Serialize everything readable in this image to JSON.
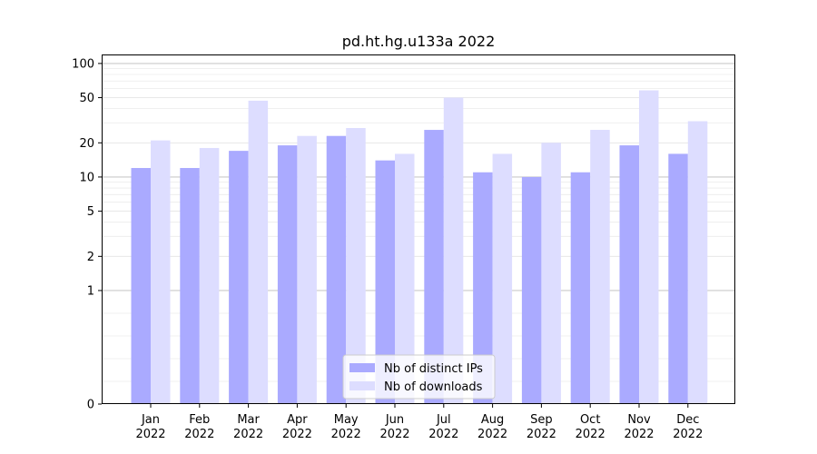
{
  "chart_data": {
    "type": "bar",
    "title": "pd.ht.hg.u133a 2022",
    "xlabel": "",
    "ylabel": "",
    "yscale": "symlog",
    "ylim": [
      0,
      120
    ],
    "yticks": [
      0,
      1,
      2,
      5,
      10,
      20,
      50,
      100
    ],
    "ytick_labels": [
      "0",
      "1",
      "2",
      "5",
      "10",
      "20",
      "50",
      "100"
    ],
    "major_gridlines": [
      1,
      10,
      100
    ],
    "grid": true,
    "legend_position": "bottom-center",
    "categories": [
      {
        "month": "Jan",
        "year": "2022"
      },
      {
        "month": "Feb",
        "year": "2022"
      },
      {
        "month": "Mar",
        "year": "2022"
      },
      {
        "month": "Apr",
        "year": "2022"
      },
      {
        "month": "May",
        "year": "2022"
      },
      {
        "month": "Jun",
        "year": "2022"
      },
      {
        "month": "Jul",
        "year": "2022"
      },
      {
        "month": "Aug",
        "year": "2022"
      },
      {
        "month": "Sep",
        "year": "2022"
      },
      {
        "month": "Oct",
        "year": "2022"
      },
      {
        "month": "Nov",
        "year": "2022"
      },
      {
        "month": "Dec",
        "year": "2022"
      }
    ],
    "series": [
      {
        "name": "Nb of distinct IPs",
        "color": "#aaaaff",
        "values": [
          12,
          12,
          17,
          19,
          23,
          14,
          26,
          11,
          10,
          11,
          19,
          16
        ]
      },
      {
        "name": "Nb of downloads",
        "color": "#ddddff",
        "values": [
          21,
          18,
          47,
          23,
          27,
          16,
          50,
          16,
          20,
          26,
          58,
          31
        ]
      }
    ]
  }
}
